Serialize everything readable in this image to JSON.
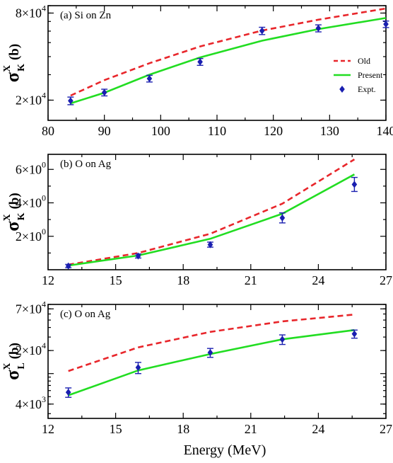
{
  "figure": {
    "xlabel": "Energy (MeV)"
  },
  "colors": {
    "old": "#e8262b",
    "present": "#22dd22",
    "expt": "#1a1fb0"
  },
  "chart_data": [
    {
      "type": "line",
      "panel_label": "(a) Si on Zn",
      "ylabel": {
        "sym": "σ",
        "sup": "X",
        "sub": "K",
        "unit": "(b)"
      },
      "yscale": "log",
      "xlim": [
        80,
        140
      ],
      "ylim": [
        14500,
        90000
      ],
      "xticks": [
        80,
        90,
        100,
        110,
        120,
        130,
        140
      ],
      "yticks": [
        {
          "value": 20000,
          "mant": "2",
          "exp": "4"
        },
        {
          "value": 80000,
          "mant": "8",
          "exp": "4"
        }
      ],
      "legend": {
        "position": "right",
        "entries": [
          "Old",
          "Present",
          "Expt."
        ]
      },
      "series": [
        {
          "name": "Old",
          "style": "dashed",
          "x": [
            84,
            90,
            98,
            107,
            118,
            128,
            140
          ],
          "y": [
            21500,
            27500,
            36000,
            47000,
            60500,
            72000,
            86000
          ]
        },
        {
          "name": "Present",
          "style": "solid",
          "x": [
            84,
            90,
            98,
            107,
            118,
            128,
            140
          ],
          "y": [
            19000,
            22500,
            30000,
            39500,
            51500,
            62000,
            74000
          ]
        },
        {
          "name": "Expt.",
          "style": "markers",
          "x": [
            84,
            90,
            98,
            107,
            118,
            128,
            140
          ],
          "y": [
            19800,
            22600,
            28200,
            36800,
            60300,
            62800,
            67000
          ],
          "err": [
            1200,
            1200,
            1500,
            2000,
            3500,
            3500,
            3500
          ]
        }
      ]
    },
    {
      "type": "line",
      "panel_label": "(b) O on Ag",
      "ylabel": {
        "sym": "σ",
        "sup": "X",
        "sub": "K",
        "unit": "(b)"
      },
      "yscale": "linear",
      "xlim": [
        12,
        27
      ],
      "ylim": [
        0,
        6.9
      ],
      "xticks": [
        12,
        15,
        18,
        21,
        24,
        27
      ],
      "yticks": [
        {
          "value": 2,
          "mant": "2",
          "exp": "0"
        },
        {
          "value": 4,
          "mant": "4",
          "exp": "0"
        },
        {
          "value": 6,
          "mant": "6",
          "exp": "0"
        }
      ],
      "series": [
        {
          "name": "Old",
          "style": "dashed",
          "x": [
            12.9,
            16,
            19.2,
            22.4,
            25.6
          ],
          "y": [
            0.3,
            1.0,
            2.15,
            3.95,
            6.6
          ]
        },
        {
          "name": "Present",
          "style": "solid",
          "x": [
            12.9,
            16,
            19.2,
            22.4,
            25.6
          ],
          "y": [
            0.25,
            0.85,
            1.85,
            3.35,
            5.7
          ]
        },
        {
          "name": "Expt.",
          "style": "markers",
          "x": [
            12.9,
            16,
            19.2,
            22.4,
            25.6
          ],
          "y": [
            0.22,
            0.82,
            1.5,
            3.1,
            5.1
          ],
          "err": [
            0.1,
            0.12,
            0.15,
            0.3,
            0.42
          ]
        }
      ]
    },
    {
      "type": "line",
      "panel_label": "(c) O on Ag",
      "ylabel": {
        "sym": "σ",
        "sup": "X",
        "sub": "L",
        "unit": "(b)"
      },
      "yscale": "log",
      "xlim": [
        12,
        27
      ],
      "ylim": [
        2600,
        80000
      ],
      "xticks": [
        12,
        15,
        18,
        21,
        24,
        27
      ],
      "yticks": [
        {
          "value": 4000,
          "mant": "4",
          "exp": "3"
        },
        {
          "value": 20000,
          "mant": "2",
          "exp": "4"
        },
        {
          "value": 70000,
          "mant": "7",
          "exp": "4"
        }
      ],
      "series": [
        {
          "name": "Old",
          "style": "dashed",
          "x": [
            12.9,
            16,
            19.2,
            22.4,
            25.6
          ],
          "y": [
            10800,
            22000,
            35000,
            48000,
            59000
          ]
        },
        {
          "name": "Present",
          "style": "solid",
          "x": [
            12.9,
            16,
            19.2,
            22.4,
            25.6
          ],
          "y": [
            5200,
            11000,
            18000,
            28000,
            37000
          ]
        },
        {
          "name": "Expt.",
          "style": "markers",
          "x": [
            12.9,
            16,
            19.2,
            22.4,
            25.6
          ],
          "y": [
            5700,
            12000,
            18800,
            28000,
            33000
          ],
          "err": [
            800,
            2000,
            2500,
            4000,
            4000
          ]
        }
      ]
    }
  ]
}
